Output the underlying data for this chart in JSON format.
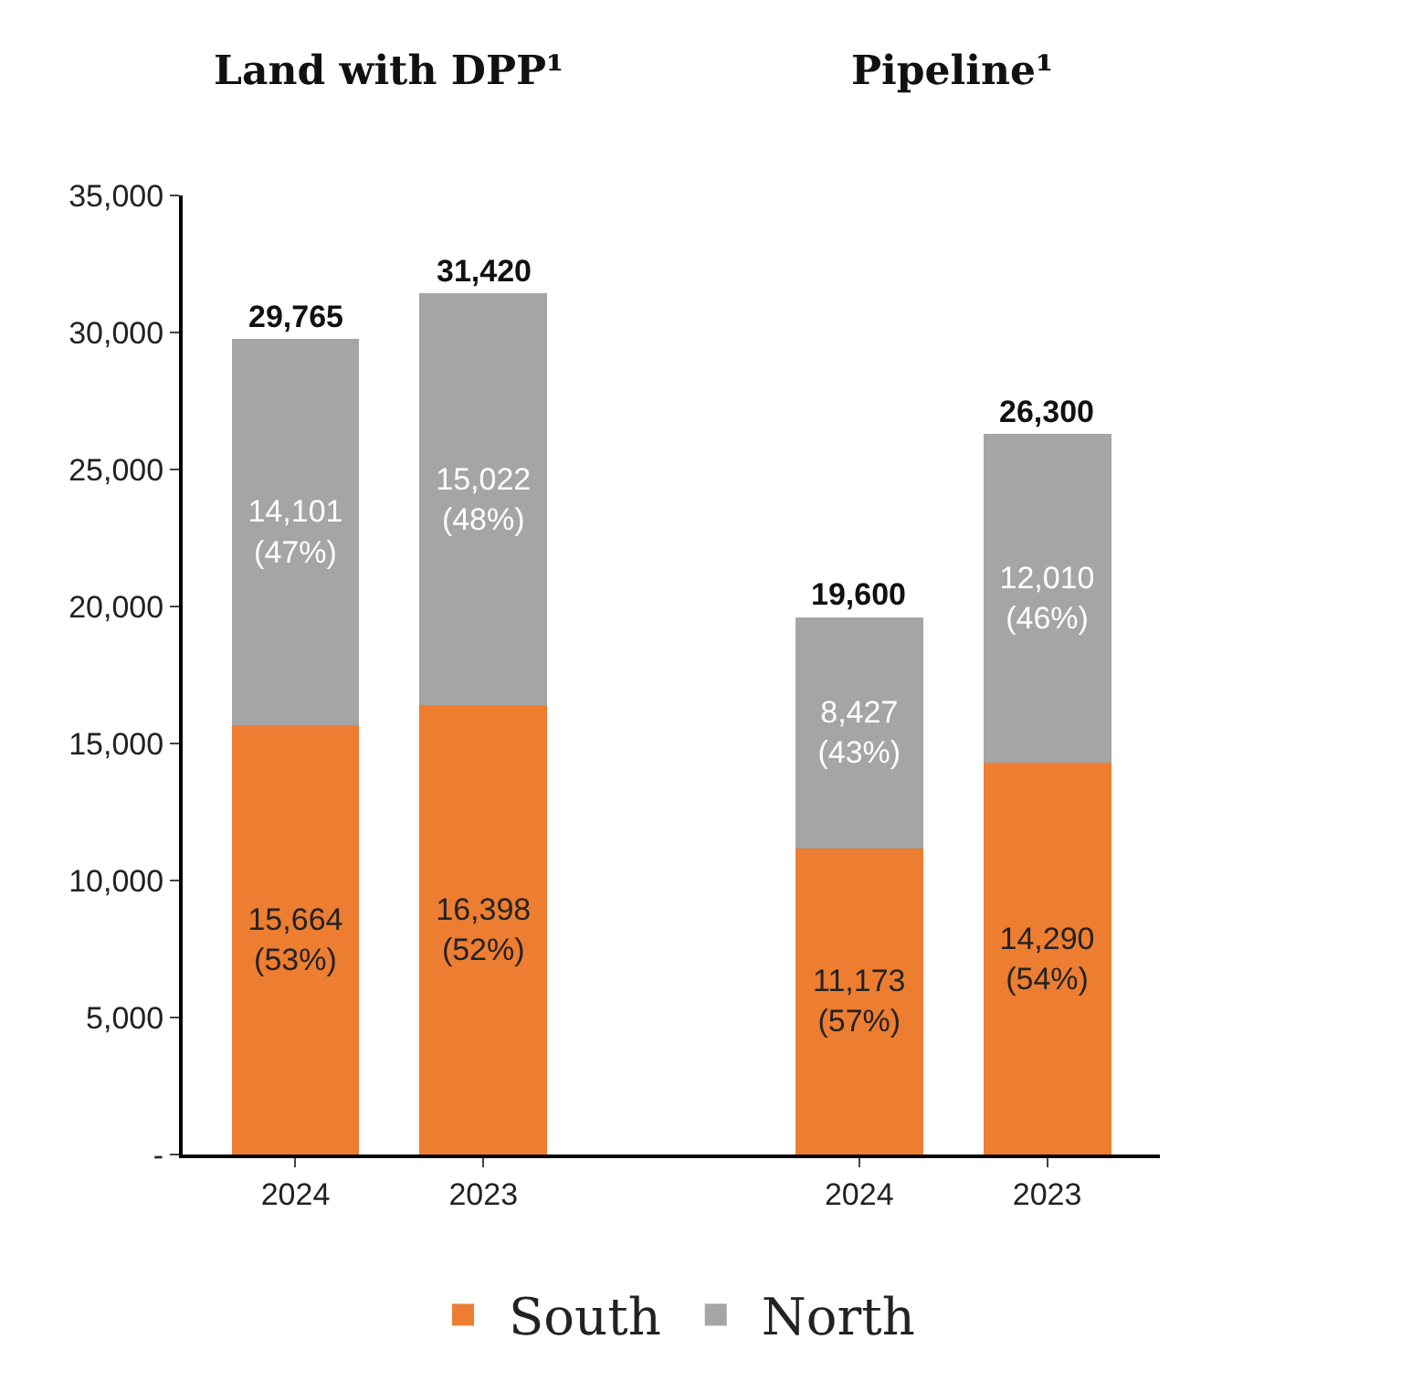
{
  "chart_data": {
    "type": "bar",
    "stacked": true,
    "annotations": [
      "Land with DPP¹",
      "Pipeline¹"
    ],
    "categories": [
      "2024",
      "2023",
      null,
      "2024",
      "2023"
    ],
    "series": [
      {
        "name": "South",
        "color": "#ed7d31",
        "values": [
          15664,
          16398,
          null,
          11173,
          14290
        ],
        "value_labels": [
          "15,664\n(53%)",
          "16,398\n(52%)",
          null,
          "11,173\n(57%)",
          "14,290\n(54%)"
        ]
      },
      {
        "name": "North",
        "color": "#a5a5a5",
        "values": [
          14101,
          15022,
          null,
          8427,
          12010
        ],
        "value_labels": [
          "14,101\n(47%)",
          "15,022\n(48%)",
          null,
          "8,427\n(43%)",
          "12,010\n(46%)"
        ]
      }
    ],
    "totals": [
      "29,765",
      "31,420",
      null,
      "19,600",
      "26,300"
    ],
    "ylim": [
      0,
      35000
    ],
    "yticks": [
      {
        "value": 0,
        "label": "-"
      },
      {
        "value": 5000,
        "label": "5,000"
      },
      {
        "value": 10000,
        "label": "10,000"
      },
      {
        "value": 15000,
        "label": "15,000"
      },
      {
        "value": 20000,
        "label": "20,000"
      },
      {
        "value": 25000,
        "label": "25,000"
      },
      {
        "value": 30000,
        "label": "30,000"
      },
      {
        "value": 35000,
        "label": "35,000"
      }
    ],
    "grid": false,
    "legend": "bottom"
  }
}
